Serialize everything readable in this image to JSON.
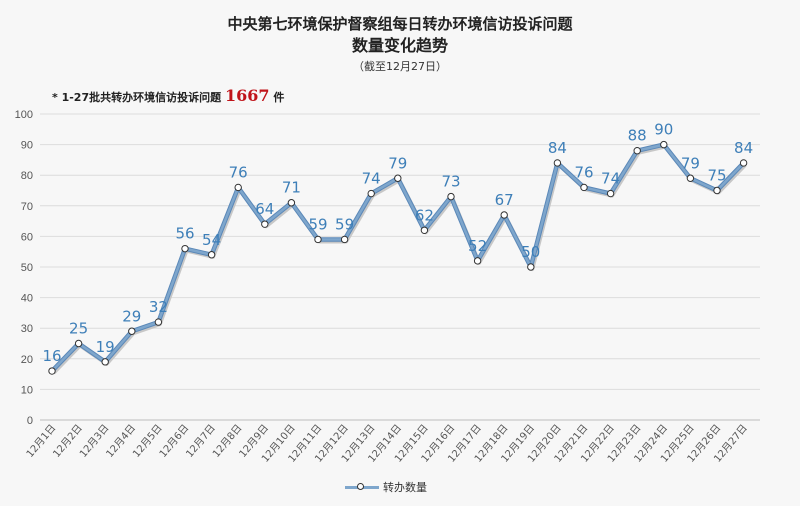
{
  "title": {
    "line1": "中央第七环境保护督察组每日转办环境信访投诉问题",
    "line2": "数量变化趋势",
    "line3": "（截至12月27日）"
  },
  "note": {
    "prefix": "* 1-27批共转办环境信访投诉问题",
    "number": "1667",
    "suffix": " 件"
  },
  "legend_label": "转办数量",
  "colors": {
    "line": "#7ea6cc",
    "line_dark": "#5b88b8",
    "label": "#3e7fb8",
    "grid": "#dcdcdc",
    "note_number": "#c0141a"
  },
  "chart_data": {
    "type": "line",
    "categories": [
      "12月1日",
      "12月2日",
      "12月3日",
      "12月4日",
      "12月5日",
      "12月6日",
      "12月7日",
      "12月8日",
      "12月9日",
      "12月10日",
      "12月11日",
      "12月12日",
      "12月13日",
      "12月14日",
      "12月15日",
      "12月16日",
      "12月17日",
      "12月18日",
      "12月19日",
      "12月20日",
      "12月21日",
      "12月22日",
      "12月23日",
      "12月24日",
      "12月25日",
      "12月26日",
      "12月27日"
    ],
    "series": [
      {
        "name": "转办数量",
        "values": [
          16,
          25,
          19,
          29,
          32,
          56,
          54,
          76,
          64,
          71,
          59,
          59,
          74,
          79,
          62,
          73,
          52,
          67,
          50,
          84,
          76,
          74,
          88,
          90,
          79,
          75,
          84
        ]
      }
    ],
    "yticks": [
      "0",
      "10",
      "20",
      "30",
      "40",
      "50",
      "60",
      "70",
      "80",
      "90",
      "100"
    ],
    "ylim": [
      0,
      100
    ],
    "grid": true,
    "legend_position": "bottom"
  }
}
